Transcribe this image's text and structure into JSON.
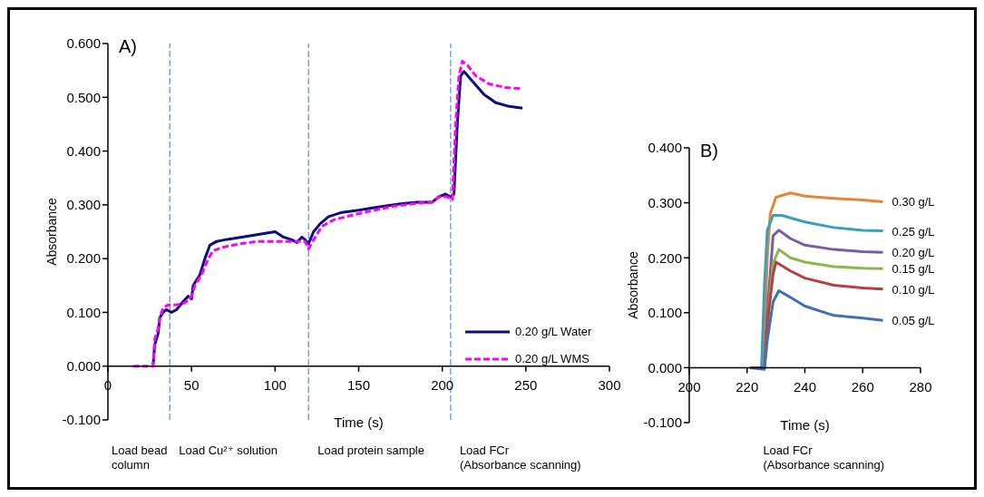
{
  "chart_data": [
    {
      "type": "line",
      "title": "A)",
      "xlabel": "Time (s)",
      "ylabel": "Absorbance",
      "xlim": [
        0,
        300
      ],
      "xticks": [
        0,
        50,
        100,
        150,
        200,
        250,
        300
      ],
      "ylim": [
        -0.1,
        0.6
      ],
      "yticks": [
        {
          "value": -0.1,
          "label": "-0.100"
        },
        {
          "value": 0,
          "label": "0.000"
        },
        {
          "value": 0.1,
          "label": "0.100"
        },
        {
          "value": 0.2,
          "label": "0.200"
        },
        {
          "value": 0.3,
          "label": "0.300"
        },
        {
          "value": 0.4,
          "label": "0.400"
        },
        {
          "value": 0.5,
          "label": "0.500"
        },
        {
          "value": 0.6,
          "label": "0.600"
        }
      ],
      "legend": "bottom right",
      "marker": "none",
      "series": [
        {
          "name": "0.20 g/L Water",
          "color": "#0d0d80",
          "line_style": "solid",
          "x": [
            27,
            28,
            30,
            31,
            33,
            35,
            38,
            41,
            45,
            48,
            50,
            51,
            55,
            58,
            61,
            65,
            70,
            80,
            90,
            100,
            105,
            110,
            113,
            116,
            118,
            120,
            123,
            127,
            132,
            140,
            150,
            160,
            175,
            185,
            194,
            198,
            202,
            205,
            207,
            209,
            211,
            213,
            218,
            225,
            232,
            240,
            248
          ],
          "values": [
            0,
            0.04,
            0.06,
            0.09,
            0.1,
            0.105,
            0.1,
            0.105,
            0.12,
            0.13,
            0.125,
            0.15,
            0.17,
            0.2,
            0.225,
            0.232,
            0.235,
            0.24,
            0.245,
            0.25,
            0.24,
            0.235,
            0.23,
            0.24,
            0.235,
            0.228,
            0.25,
            0.265,
            0.278,
            0.286,
            0.29,
            0.295,
            0.302,
            0.305,
            0.305,
            0.315,
            0.32,
            0.315,
            0.32,
            0.45,
            0.54,
            0.548,
            0.53,
            0.505,
            0.49,
            0.483,
            0.48
          ]
        },
        {
          "name": "0.20 g/L WMS",
          "color": "#ff00ff",
          "line_style": "dashed",
          "x": [
            15,
            27,
            28,
            30,
            31,
            33,
            36,
            40,
            44,
            47,
            50,
            52,
            56,
            60,
            63,
            70,
            80,
            90,
            100,
            110,
            118,
            120,
            123,
            128,
            135,
            145,
            155,
            170,
            185,
            194,
            198,
            203,
            206,
            208,
            210,
            212,
            215,
            220,
            228,
            238,
            248
          ],
          "values": [
            0,
            0,
            0.05,
            0.07,
            0.09,
            0.108,
            0.114,
            0.114,
            0.115,
            0.12,
            0.13,
            0.15,
            0.17,
            0.2,
            0.215,
            0.222,
            0.228,
            0.232,
            0.232,
            0.232,
            0.232,
            0.218,
            0.235,
            0.26,
            0.272,
            0.28,
            0.287,
            0.297,
            0.303,
            0.305,
            0.315,
            0.315,
            0.31,
            0.45,
            0.54,
            0.567,
            0.56,
            0.54,
            0.525,
            0.518,
            0.516
          ]
        }
      ],
      "ref_lines": [
        {
          "axis": "x",
          "value": 37,
          "color": "#5b8fd0",
          "line_style": "dashed"
        },
        {
          "axis": "x",
          "value": 120,
          "color": "#5b8fd0",
          "line_style": "dashed"
        },
        {
          "axis": "x",
          "value": 205,
          "color": "#5b8fd0",
          "line_style": "dashed"
        }
      ],
      "annotations": [
        "Load bead\ncolumn",
        "Load Cu²⁺ solution",
        "Load protein sample",
        "Load FCr\n(Absorbance scanning)"
      ]
    },
    {
      "type": "line",
      "title": "B)",
      "xlabel": "Time (s)",
      "ylabel": "Absorbance",
      "xlim": [
        200,
        280
      ],
      "xticks": [
        200,
        220,
        240,
        260,
        280
      ],
      "ylim": [
        -0.1,
        0.4
      ],
      "yticks": [
        {
          "value": -0.1,
          "label": "-0.100"
        },
        {
          "value": 0,
          "label": "0.000"
        },
        {
          "value": 0.1,
          "label": "0.100"
        },
        {
          "value": 0.2,
          "label": "0.200"
        },
        {
          "value": 0.3,
          "label": "0.300"
        },
        {
          "value": 0.4,
          "label": "0.400"
        }
      ],
      "marker": "none",
      "series": [
        {
          "name": "0.30 g/L",
          "color": "#e8843a",
          "x": [
            221,
            225,
            226,
            227,
            228,
            230,
            235,
            240,
            250,
            260,
            267
          ],
          "values": [
            0,
            0,
            0.05,
            0.2,
            0.28,
            0.31,
            0.318,
            0.312,
            0.308,
            0.305,
            0.302
          ]
        },
        {
          "name": "0.25 g/L",
          "color": "#3a9fb8",
          "x": [
            221,
            225,
            226,
            227,
            229,
            232,
            240,
            250,
            260,
            267
          ],
          "values": [
            0,
            0,
            0.15,
            0.25,
            0.277,
            0.277,
            0.265,
            0.255,
            0.25,
            0.249
          ]
        },
        {
          "name": "0.20 g/L",
          "color": "#7a5ba5",
          "x": [
            221,
            226,
            227,
            229,
            231,
            235,
            240,
            250,
            260,
            267
          ],
          "values": [
            0,
            0,
            0.1,
            0.24,
            0.25,
            0.235,
            0.223,
            0.215,
            0.211,
            0.21
          ]
        },
        {
          "name": "0.15 g/L",
          "color": "#8cb84a",
          "x": [
            221,
            226,
            227,
            229,
            231,
            235,
            240,
            250,
            260,
            267
          ],
          "values": [
            0,
            0,
            0.08,
            0.19,
            0.215,
            0.2,
            0.192,
            0.184,
            0.181,
            0.18
          ]
        },
        {
          "name": "0.10 g/L",
          "color": "#b64040",
          "x": [
            221,
            226,
            227,
            229,
            230,
            235,
            240,
            250,
            260,
            267
          ],
          "values": [
            0,
            0,
            0.08,
            0.17,
            0.192,
            0.176,
            0.163,
            0.15,
            0.145,
            0.143
          ]
        },
        {
          "name": "0.05 g/L",
          "color": "#3f72b0",
          "x": [
            221,
            226,
            227,
            229,
            231,
            235,
            240,
            250,
            260,
            267
          ],
          "values": [
            0,
            -0.003,
            0.05,
            0.12,
            0.14,
            0.128,
            0.112,
            0.095,
            0.09,
            0.086
          ]
        }
      ],
      "annotations": [
        "Load FCr\n(Absorbance scanning)"
      ]
    }
  ]
}
